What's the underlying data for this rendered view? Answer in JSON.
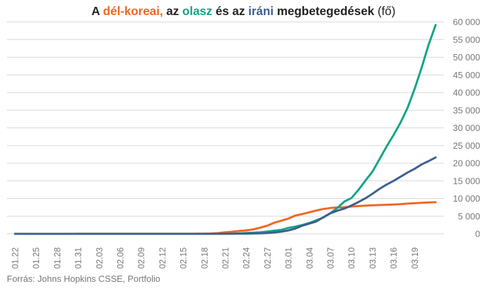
{
  "title": {
    "part1": "A ",
    "korea": "dél-koreai,",
    "part2": " az ",
    "italy": "olasz",
    "part3": " és az ",
    "iran": "iráni",
    "part4": " megbetegedések",
    "part5": " (fő)"
  },
  "colors": {
    "korea": "#f26522",
    "italy": "#13a486",
    "iran": "#3d5f8f",
    "text": "#222222",
    "axis": "#777777",
    "grid": "#d7d7d7"
  },
  "source": "Forrás: Johns Hopkins CSSE, Portfolio",
  "chart_data": {
    "type": "line",
    "title": "A dél-koreai, az olasz és az iráni megbetegedések (fő)",
    "xlabel": "",
    "ylabel": "",
    "ylim": [
      0,
      60000
    ],
    "yticks": [
      0,
      5000,
      10000,
      15000,
      20000,
      25000,
      30000,
      35000,
      40000,
      45000,
      50000,
      55000,
      60000
    ],
    "ytick_labels": [
      "0",
      "5 000",
      "10 000",
      "15 000",
      "20 000",
      "25 000",
      "30 000",
      "35 000",
      "40 000",
      "45 000",
      "50 000",
      "55 000",
      "60 000"
    ],
    "y_axis_position": "right",
    "grid": "horizontal",
    "x": [
      "01.22",
      "01.23",
      "01.24",
      "01.25",
      "01.26",
      "01.27",
      "01.28",
      "01.29",
      "01.30",
      "01.31",
      "02.01",
      "02.02",
      "02.03",
      "02.04",
      "02.05",
      "02.06",
      "02.07",
      "02.08",
      "02.09",
      "02.10",
      "02.11",
      "02.12",
      "02.13",
      "02.14",
      "02.15",
      "02.16",
      "02.17",
      "02.18",
      "02.19",
      "02.20",
      "02.21",
      "02.22",
      "02.23",
      "02.24",
      "02.25",
      "02.26",
      "02.27",
      "02.28",
      "02.29",
      "03.01",
      "03.02",
      "03.03",
      "03.04",
      "03.05",
      "03.06",
      "03.07",
      "03.08",
      "03.09",
      "03.10",
      "03.11",
      "03.12",
      "03.13",
      "03.14",
      "03.15",
      "03.16",
      "03.17",
      "03.18",
      "03.19",
      "03.20",
      "03.21",
      "03.22"
    ],
    "x_tick_labels": [
      "01.22",
      "01.25",
      "01.28",
      "01.31",
      "02.03",
      "02.06",
      "02.09",
      "02.12",
      "02.15",
      "02.18",
      "02.21",
      "02.24",
      "02.27",
      "03.01",
      "03.04",
      "03.07",
      "03.10",
      "03.13",
      "03.16",
      "03.19"
    ],
    "series": [
      {
        "name": "dél-koreai",
        "color": "#f26522",
        "values": [
          1,
          1,
          2,
          2,
          3,
          4,
          4,
          4,
          4,
          11,
          12,
          15,
          15,
          16,
          19,
          23,
          24,
          24,
          25,
          27,
          28,
          28,
          28,
          28,
          28,
          29,
          30,
          31,
          104,
          204,
          433,
          602,
          833,
          977,
          1261,
          1766,
          2337,
          3150,
          3736,
          4335,
          5186,
          5621,
          6088,
          6593,
          7041,
          7314,
          7478,
          7513,
          7755,
          7869,
          7979,
          8086,
          8162,
          8236,
          8320,
          8413,
          8565,
          8652,
          8799,
          8897,
          8961
        ]
      },
      {
        "name": "olasz",
        "color": "#13a486",
        "values": [
          0,
          0,
          0,
          0,
          0,
          0,
          0,
          0,
          0,
          2,
          2,
          2,
          2,
          2,
          2,
          2,
          3,
          3,
          3,
          3,
          3,
          3,
          3,
          3,
          3,
          3,
          3,
          3,
          3,
          3,
          20,
          62,
          155,
          229,
          322,
          453,
          655,
          888,
          1128,
          1694,
          2036,
          2502,
          3089,
          3858,
          4636,
          5883,
          7375,
          9172,
          10149,
          12462,
          15113,
          17660,
          21157,
          24747,
          27980,
          31506,
          35713,
          41035,
          47021,
          53578,
          59138
        ]
      },
      {
        "name": "iráni",
        "color": "#3d5f8f",
        "values": [
          0,
          0,
          0,
          0,
          0,
          0,
          0,
          0,
          0,
          0,
          0,
          0,
          0,
          0,
          0,
          0,
          0,
          0,
          0,
          0,
          0,
          0,
          0,
          0,
          0,
          0,
          0,
          0,
          2,
          5,
          18,
          28,
          43,
          61,
          95,
          139,
          245,
          388,
          593,
          978,
          1501,
          2336,
          2922,
          3513,
          4747,
          5823,
          6566,
          7161,
          8042,
          9000,
          10075,
          11364,
          12729,
          13938,
          14991,
          16169,
          17361,
          18407,
          19644,
          20610,
          21638
        ]
      }
    ]
  }
}
